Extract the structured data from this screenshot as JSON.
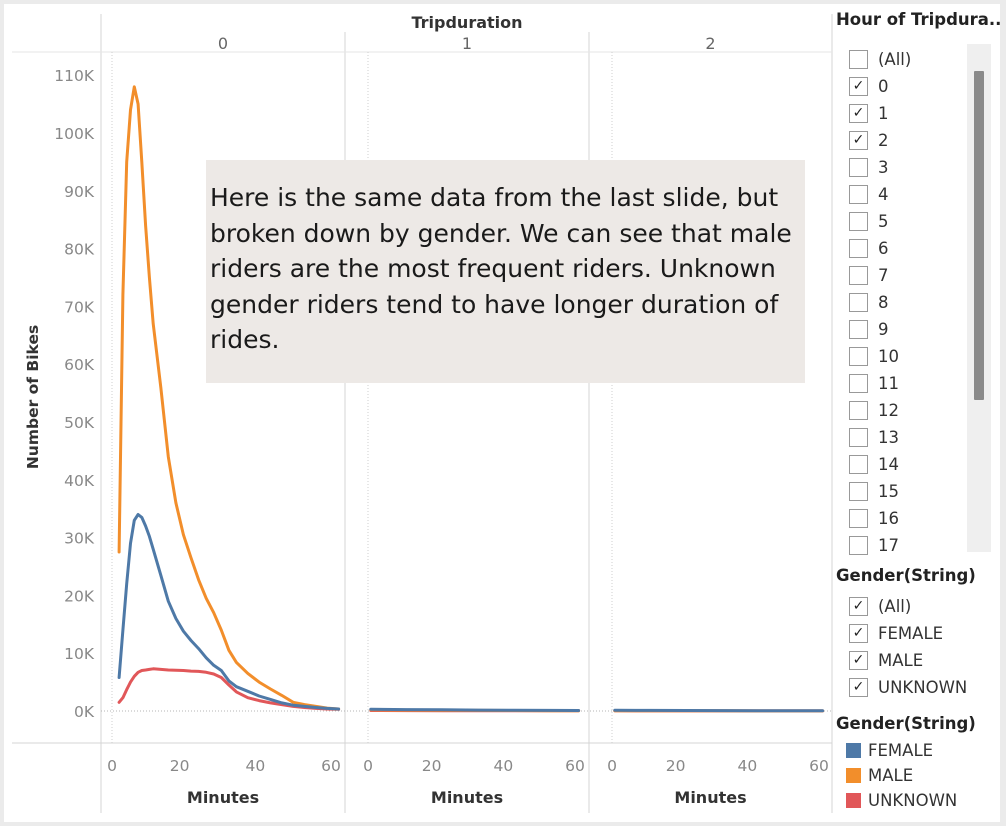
{
  "chart_data": {
    "type": "line",
    "title": "Tripduration",
    "ylabel": "Number of Bikes",
    "xlabel": "Minutes",
    "panels": [
      "0",
      "1",
      "2"
    ],
    "xlim": [
      0,
      60
    ],
    "ylim": [
      0,
      115000
    ],
    "xticks": [
      0,
      20,
      40,
      60
    ],
    "xtick_labels": [
      "0",
      "20",
      "40",
      "60"
    ],
    "yticks": [
      0,
      10000,
      20000,
      30000,
      40000,
      50000,
      60000,
      70000,
      80000,
      90000,
      100000,
      110000
    ],
    "ytick_labels": [
      "0K",
      "10K",
      "20K",
      "30K",
      "40K",
      "50K",
      "60K",
      "70K",
      "80K",
      "90K",
      "100K",
      "110K"
    ],
    "series": [
      {
        "name": "FEMALE",
        "color": "#4e79a7",
        "panels": [
          {
            "x": [
              1,
              2,
              3,
              4,
              5,
              6,
              7,
              8,
              9,
              10,
              12,
              14,
              16,
              18,
              20,
              22,
              24,
              26,
              28,
              30,
              32,
              35,
              38,
              41,
              44,
              47,
              50,
              53,
              56,
              59
            ],
            "y": [
              5800,
              14000,
              22000,
              29000,
              33000,
              34000,
              33500,
              32000,
              30200,
              28000,
              23500,
              19000,
              16000,
              13800,
              12200,
              10800,
              9200,
              7900,
              7000,
              5200,
              4200,
              3400,
              2600,
              2000,
              1400,
              1000,
              800,
              600,
              450,
              350
            ]
          },
          {
            "x": [
              0,
              10,
              20,
              30,
              40,
              50,
              58
            ],
            "y": [
              300,
              250,
              200,
              150,
              120,
              100,
              80
            ]
          },
          {
            "x": [
              0,
              10,
              20,
              30,
              40,
              50,
              58
            ],
            "y": [
              120,
              100,
              80,
              70,
              60,
              50,
              40
            ]
          }
        ]
      },
      {
        "name": "MALE",
        "color": "#f28e2b",
        "panels": [
          {
            "x": [
              1,
              2,
              3,
              4,
              5,
              6,
              7,
              8,
              9,
              10,
              12,
              14,
              16,
              18,
              20,
              22,
              24,
              26,
              28,
              30,
              32,
              35,
              38,
              41,
              44,
              47,
              50,
              53,
              56,
              59
            ],
            "y": [
              27500,
              72000,
              95000,
              104000,
              108000,
              105000,
              95000,
              84000,
              75000,
              67000,
              56000,
              44000,
              36000,
              30500,
              26500,
              22700,
              19500,
              17000,
              14000,
              10500,
              8400,
              6500,
              5000,
              3800,
              2700,
              1500,
              1100,
              800,
              500,
              350
            ]
          },
          {
            "x": [
              0,
              10,
              20,
              30,
              40,
              50,
              58
            ],
            "y": [
              200,
              160,
              120,
              100,
              80,
              60,
              50
            ]
          },
          {
            "x": [
              0,
              10,
              20,
              30,
              40,
              50,
              58
            ],
            "y": [
              60,
              50,
              40,
              30,
              25,
              20,
              15
            ]
          }
        ]
      },
      {
        "name": "UNKNOWN",
        "color": "#e15759",
        "panels": [
          {
            "x": [
              1,
              2,
              3,
              4,
              5,
              6,
              7,
              8,
              9,
              10,
              12,
              14,
              16,
              18,
              20,
              22,
              24,
              26,
              28,
              30,
              32,
              35,
              38,
              41,
              44,
              47,
              50,
              53,
              56,
              59
            ],
            "y": [
              1500,
              2300,
              3700,
              5000,
              6000,
              6700,
              7000,
              7100,
              7200,
              7300,
              7200,
              7100,
              7050,
              7000,
              6900,
              6850,
              6700,
              6400,
              5800,
              4500,
              3300,
              2300,
              1800,
              1400,
              1100,
              800,
              600,
              450,
              350,
              300
            ]
          },
          {
            "x": [
              0,
              10,
              20,
              30,
              40,
              50,
              58
            ],
            "y": [
              80,
              70,
              60,
              50,
              40,
              35,
              30
            ]
          },
          {
            "x": [
              0,
              10,
              20,
              30,
              40,
              50,
              58
            ],
            "y": [
              30,
              25,
              20,
              18,
              15,
              12,
              10
            ]
          }
        ]
      }
    ]
  },
  "annotation": "Here is the same data from the last slide, but broken down by gender. We can see that male riders are the most frequent riders. Unknown gender riders tend to have longer duration of rides.",
  "filter_hour": {
    "title": "Hour of Tripdura..",
    "items": [
      {
        "label": "(All)",
        "checked": false
      },
      {
        "label": "0",
        "checked": true
      },
      {
        "label": "1",
        "checked": true
      },
      {
        "label": "2",
        "checked": true
      },
      {
        "label": "3",
        "checked": false
      },
      {
        "label": "4",
        "checked": false
      },
      {
        "label": "5",
        "checked": false
      },
      {
        "label": "6",
        "checked": false
      },
      {
        "label": "7",
        "checked": false
      },
      {
        "label": "8",
        "checked": false
      },
      {
        "label": "9",
        "checked": false
      },
      {
        "label": "10",
        "checked": false
      },
      {
        "label": "11",
        "checked": false
      },
      {
        "label": "12",
        "checked": false
      },
      {
        "label": "13",
        "checked": false
      },
      {
        "label": "14",
        "checked": false
      },
      {
        "label": "15",
        "checked": false
      },
      {
        "label": "16",
        "checked": false
      },
      {
        "label": "17",
        "checked": false
      }
    ]
  },
  "filter_gender": {
    "title": "Gender(String)",
    "items": [
      {
        "label": "(All)",
        "checked": true
      },
      {
        "label": "FEMALE",
        "checked": true
      },
      {
        "label": "MALE",
        "checked": true
      },
      {
        "label": "UNKNOWN",
        "checked": true
      }
    ]
  },
  "legend": {
    "title": "Gender(String)",
    "items": [
      {
        "label": "FEMALE",
        "color": "#4e79a7"
      },
      {
        "label": "MALE",
        "color": "#f28e2b"
      },
      {
        "label": "UNKNOWN",
        "color": "#e15759"
      }
    ]
  }
}
